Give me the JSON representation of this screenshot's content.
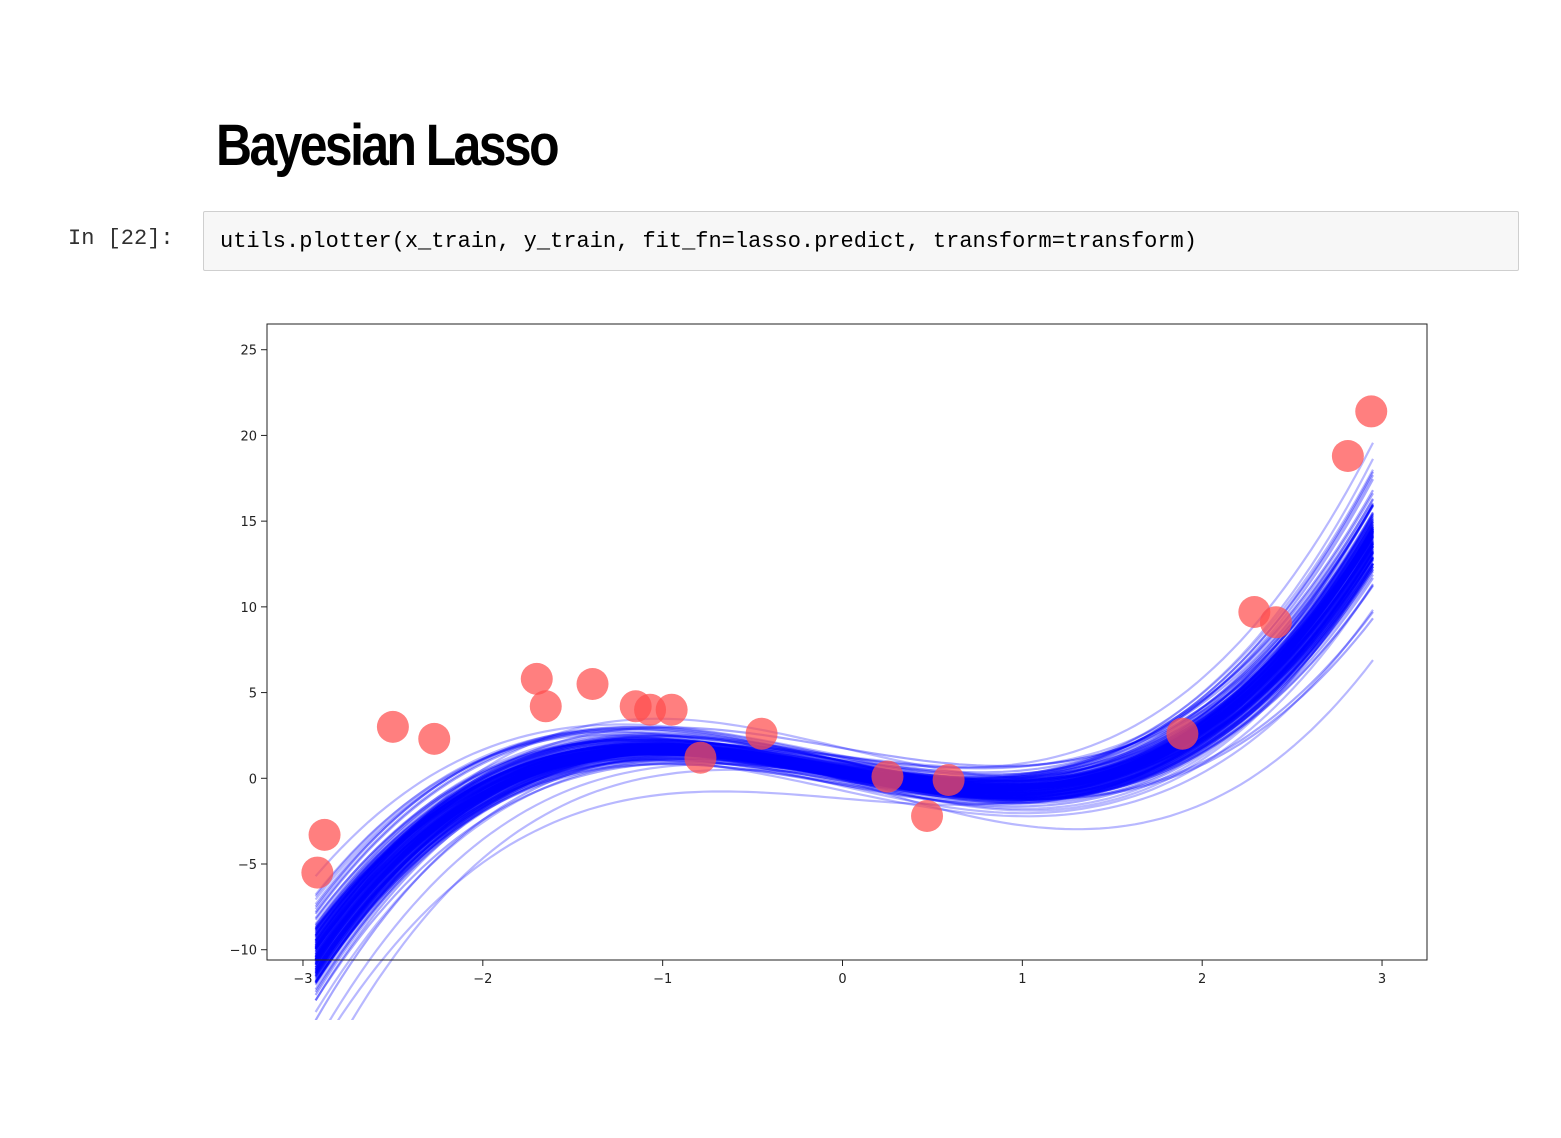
{
  "notebook": {
    "heading": "Bayesian Lasso",
    "cell": {
      "prompt": "In [22]:",
      "code": "utils.plotter(x_train, y_train, fit_fn=lasso.predict, transform=transform)"
    }
  },
  "chart_data": {
    "type": "scatter",
    "title": "",
    "xlabel": "",
    "ylabel": "",
    "xlim": [
      -3.2,
      3.25
    ],
    "ylim": [
      -10.6,
      26.5
    ],
    "xticks": [
      -3,
      -2,
      -1,
      0,
      1,
      2,
      3
    ],
    "xtick_labels": [
      "−3",
      "−2",
      "−1",
      "0",
      "1",
      "2",
      "3"
    ],
    "yticks": [
      -10,
      -5,
      0,
      5,
      10,
      15,
      20,
      25
    ],
    "ytick_labels": [
      "−10",
      "−5",
      "0",
      "5",
      "10",
      "15",
      "20",
      "25"
    ],
    "grid": false,
    "series": [
      {
        "kind": "points",
        "color": "#ff4d4d",
        "x": [
          -2.92,
          -2.88,
          -2.5,
          -2.27,
          -1.7,
          -1.65,
          -1.39,
          -1.15,
          -1.07,
          -0.95,
          -0.79,
          -0.45,
          0.25,
          0.47,
          0.59,
          1.89,
          2.29,
          2.41,
          2.81,
          2.94
        ],
        "y": [
          -5.5,
          -3.3,
          3.0,
          2.3,
          5.8,
          4.2,
          5.5,
          4.2,
          4.0,
          4.0,
          1.2,
          2.6,
          0.1,
          -2.2,
          -0.1,
          2.6,
          9.7,
          9.1,
          18.8,
          21.4
        ]
      },
      {
        "kind": "posterior-fit-curves",
        "color": "#0000ff",
        "mean_coefficients": [
          0.4,
          -1.9,
          0.15,
          0.7
        ],
        "x_range": [
          -2.93,
          2.95
        ]
      }
    ]
  }
}
